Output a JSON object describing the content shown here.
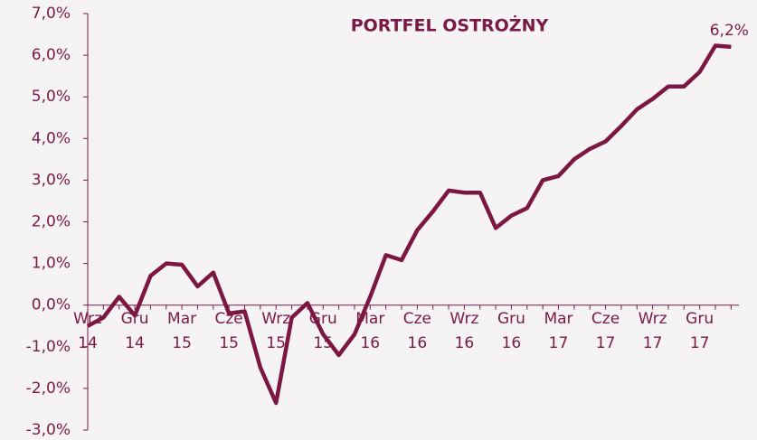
{
  "chart_data": {
    "type": "line",
    "title": "PORTFEL OSTROŻNY",
    "categories": [
      "Wrz 14",
      null,
      null,
      "Gru 14",
      null,
      null,
      "Mar 15",
      null,
      null,
      "Cze 15",
      null,
      null,
      "Wrz 15",
      null,
      null,
      "Gru 15",
      null,
      null,
      "Mar 16",
      null,
      null,
      "Cze 16",
      null,
      null,
      "Wrz 16",
      null,
      null,
      "Gru 16",
      null,
      null,
      "Mar 17",
      null,
      null,
      "Cze 17",
      null,
      null,
      "Wrz 17",
      null,
      null,
      "Gru 17",
      null,
      null
    ],
    "series": [
      {
        "name": "PORTFEL OSTROŻNY",
        "color": "#7b1740",
        "values": [
          -0.5,
          -0.3,
          0.2,
          -0.25,
          0.7,
          1.0,
          0.97,
          0.45,
          0.78,
          -0.2,
          -0.15,
          -1.5,
          -2.35,
          -0.3,
          0.05,
          -0.7,
          -1.2,
          -0.7,
          0.2,
          1.2,
          1.08,
          1.8,
          2.25,
          2.75,
          2.7,
          2.7,
          1.85,
          2.15,
          2.33,
          3.0,
          3.1,
          3.5,
          3.75,
          3.93,
          4.3,
          4.7,
          4.95,
          5.25,
          5.25,
          5.6,
          6.23,
          6.2
        ],
        "value_labels": [
          null,
          null,
          null,
          null,
          null,
          null,
          null,
          null,
          null,
          null,
          null,
          null,
          null,
          null,
          null,
          null,
          null,
          null,
          null,
          null,
          null,
          null,
          null,
          null,
          null,
          null,
          null,
          null,
          null,
          null,
          null,
          null,
          null,
          null,
          null,
          null,
          null,
          null,
          null,
          null,
          null,
          "6,2%"
        ]
      }
    ],
    "ylim": [
      -3,
      7
    ],
    "yticks": [
      {
        "value": -3,
        "label": "-3,0%"
      },
      {
        "value": -2,
        "label": "-2,0%"
      },
      {
        "value": -1,
        "label": "-1,0%"
      },
      {
        "value": 0,
        "label": "0,0%"
      },
      {
        "value": 1,
        "label": "1,0%"
      },
      {
        "value": 2,
        "label": "2,0%"
      },
      {
        "value": 3,
        "label": "3,0%"
      },
      {
        "value": 4,
        "label": "4,0%"
      },
      {
        "value": 5,
        "label": "5,0%"
      },
      {
        "value": 6,
        "label": "6,0%"
      },
      {
        "value": 7,
        "label": "7,0%"
      }
    ],
    "grid": false
  }
}
